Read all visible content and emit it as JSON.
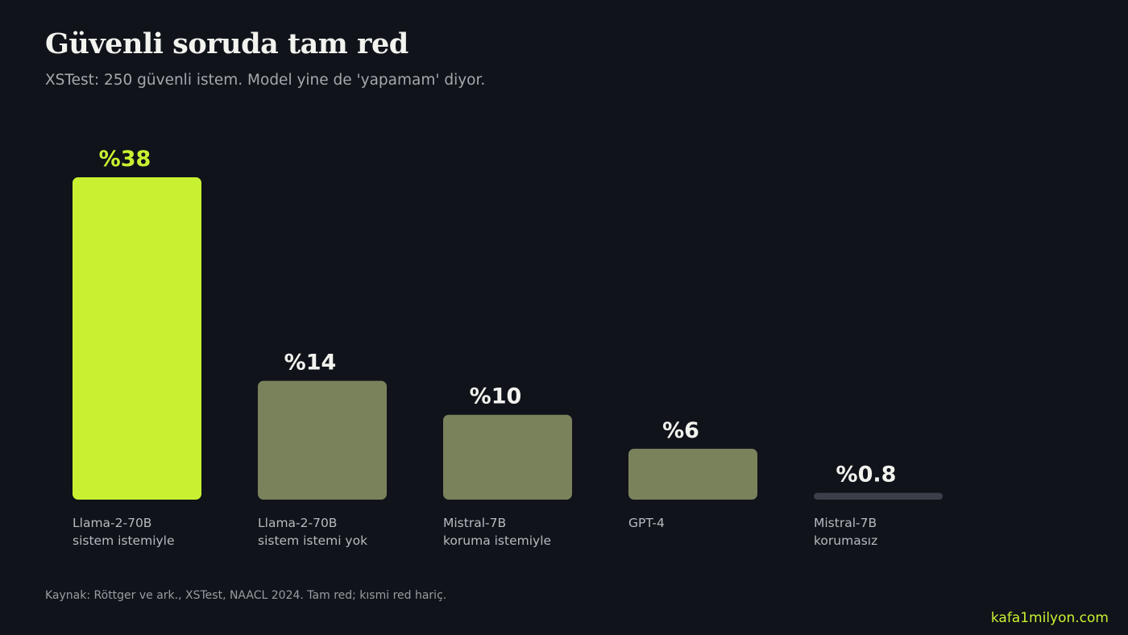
{
  "header": {
    "title": "Güvenli soruda tam red",
    "subtitle": "XSTest: 250 güvenli istem. Model yine de 'yapamam' diyor."
  },
  "chart_data": {
    "type": "bar",
    "categories": [
      [
        "Llama-2-70B",
        "sistem istemiyle"
      ],
      [
        "Llama-2-70B",
        "sistem istemi yok"
      ],
      [
        "Mistral-7B",
        "koruma istemiyle"
      ],
      [
        "GPT-4"
      ],
      [
        "Mistral-7B",
        "korumasız"
      ]
    ],
    "values": [
      38,
      14,
      10,
      6,
      0.8
    ],
    "value_labels": [
      "%38",
      "%14",
      "%10",
      "%6",
      "%0.8"
    ],
    "value_unit": "%",
    "ylim": [
      0,
      38
    ],
    "grid": false,
    "legend": "none",
    "colors": {
      "highlight": "#c8f231",
      "bar": "#7a825c",
      "min_bar": "#3a3f4a",
      "highlight_label": "#c8f231",
      "label": "#f2f2ee",
      "category_label": "#b8bac0"
    }
  },
  "footer": {
    "source": "Kaynak: Röttger ve ark., XSTest, NAACL 2024. Tam red; kısmi red hariç.",
    "brand": "kafa1milyon.com"
  }
}
